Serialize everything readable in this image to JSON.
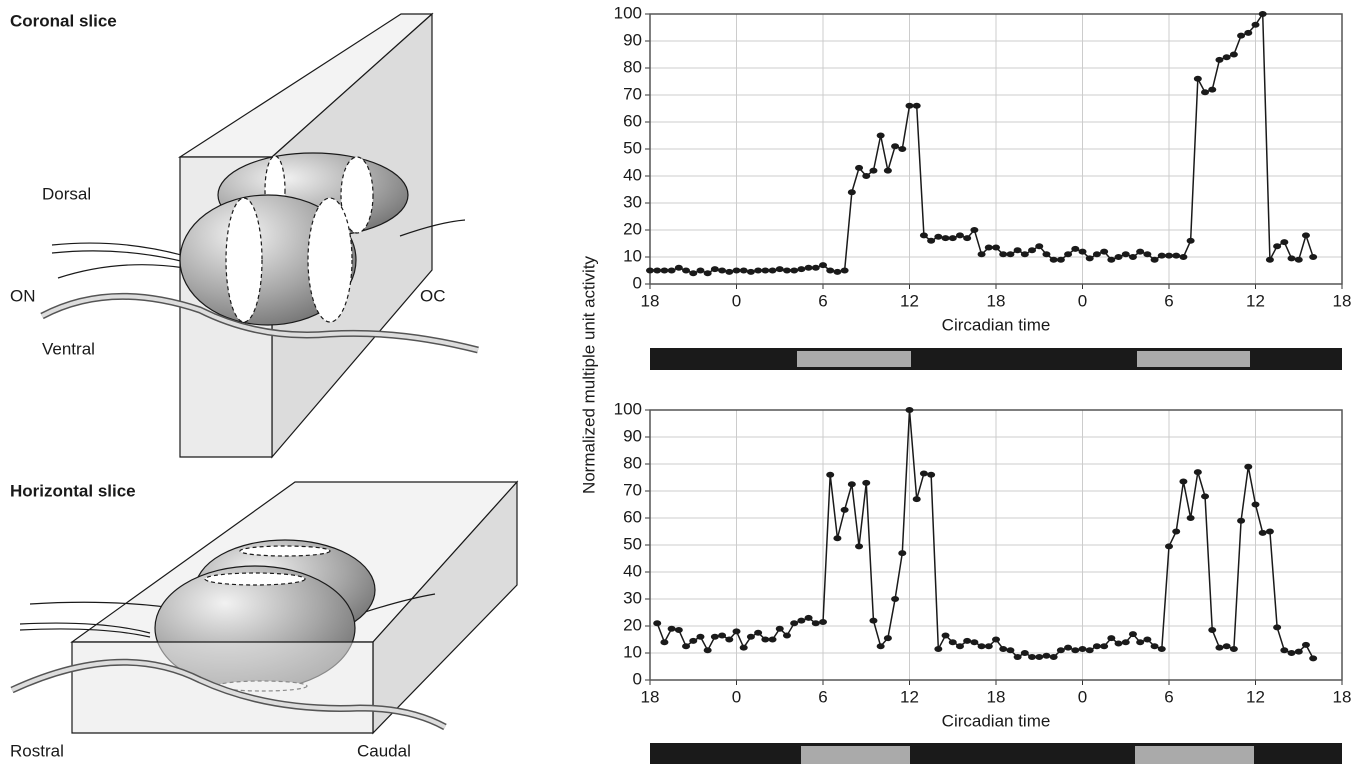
{
  "diagram": {
    "coronal": {
      "title": "Coronal slice",
      "dorsal": "Dorsal",
      "on": "ON",
      "oc": "OC",
      "ventral": "Ventral"
    },
    "horizontal": {
      "title": "Horizontal slice",
      "rostral": "Rostral",
      "caudal": "Caudal"
    }
  },
  "chart_data": [
    {
      "type": "line",
      "ylabel": "Normalized multiple unit activity",
      "xlabel": "Circadian time",
      "xlim": [
        0,
        48
      ],
      "xticks": [
        {
          "value": 0,
          "label": "18"
        },
        {
          "value": 6,
          "label": "0"
        },
        {
          "value": 12,
          "label": "6"
        },
        {
          "value": 18,
          "label": "12"
        },
        {
          "value": 24,
          "label": "18"
        },
        {
          "value": 30,
          "label": "0"
        },
        {
          "value": 36,
          "label": "6"
        },
        {
          "value": 42,
          "label": "12"
        },
        {
          "value": 48,
          "label": "18"
        }
      ],
      "ylim": [
        0,
        100
      ],
      "yticks": [
        0,
        10,
        20,
        30,
        40,
        50,
        60,
        70,
        80,
        90,
        100
      ],
      "grid": true,
      "color": "#1a1a1a",
      "x": [
        0,
        0.5,
        1,
        1.5,
        2,
        2.5,
        3,
        3.5,
        4,
        4.5,
        5,
        5.5,
        6,
        6.5,
        7,
        7.5,
        8,
        8.5,
        9,
        9.5,
        10,
        10.5,
        11,
        11.5,
        12,
        12.5,
        13,
        13.5,
        14,
        14.5,
        15,
        15.5,
        16,
        16.5,
        17,
        17.5,
        18,
        18.5,
        19,
        19.5,
        20,
        20.5,
        21,
        21.5,
        22,
        22.5,
        23,
        23.5,
        24,
        24.5,
        25,
        25.5,
        26,
        26.5,
        27,
        27.5,
        28,
        28.5,
        29,
        29.5,
        30,
        30.5,
        31,
        31.5,
        32,
        32.5,
        33,
        33.5,
        34,
        34.5,
        35,
        35.5,
        36,
        36.5,
        37,
        37.5,
        38,
        38.5,
        39,
        39.5,
        40,
        40.5,
        41,
        41.5,
        42,
        42.5,
        43,
        43.5,
        44,
        44.5,
        45,
        45.5,
        46
      ],
      "values": [
        5,
        5,
        5,
        5,
        6,
        5,
        4,
        5,
        4,
        5.5,
        5,
        4.5,
        5,
        5,
        4.5,
        5,
        5,
        5,
        5.5,
        5,
        5,
        5.5,
        6,
        6,
        7,
        5,
        4.5,
        5,
        34,
        43,
        40,
        42,
        55,
        42,
        51,
        50,
        66,
        66,
        18,
        16,
        17.5,
        17,
        17,
        18,
        17,
        20,
        11,
        13.5,
        13.5,
        11,
        11,
        12.5,
        11,
        12.5,
        14,
        11,
        9,
        9,
        11,
        13,
        12,
        9.5,
        11,
        12,
        9,
        10,
        11,
        10,
        12,
        11,
        9,
        10.5,
        10.5,
        10.5,
        10,
        16,
        76,
        71,
        72,
        83,
        84,
        85,
        92,
        93,
        96,
        100,
        9,
        14,
        15.5,
        9.5,
        9,
        18,
        10
      ]
    },
    {
      "type": "line",
      "xlabel": "Circadian time",
      "xlim": [
        0,
        48
      ],
      "xticks": [
        {
          "value": 0,
          "label": "18"
        },
        {
          "value": 6,
          "label": "0"
        },
        {
          "value": 12,
          "label": "6"
        },
        {
          "value": 18,
          "label": "12"
        },
        {
          "value": 24,
          "label": "18"
        },
        {
          "value": 30,
          "label": "0"
        },
        {
          "value": 36,
          "label": "6"
        },
        {
          "value": 42,
          "label": "12"
        },
        {
          "value": 48,
          "label": "18"
        }
      ],
      "ylim": [
        0,
        100
      ],
      "yticks": [
        0,
        10,
        20,
        30,
        40,
        50,
        60,
        70,
        80,
        90,
        100
      ],
      "grid": true,
      "color": "#1a1a1a",
      "x": [
        0.5,
        1,
        1.5,
        2,
        2.5,
        3,
        3.5,
        4,
        4.5,
        5,
        5.5,
        6,
        6.5,
        7,
        7.5,
        8,
        8.5,
        9,
        9.5,
        10,
        10.5,
        11,
        11.5,
        12,
        12.5,
        13,
        13.5,
        14,
        14.5,
        15,
        15.5,
        16,
        16.5,
        17,
        17.5,
        18,
        18.5,
        19,
        19.5,
        20,
        20.5,
        21,
        21.5,
        22,
        22.5,
        23,
        23.5,
        24,
        24.5,
        25,
        25.5,
        26,
        26.5,
        27,
        27.5,
        28,
        28.5,
        29,
        29.5,
        30,
        30.5,
        31,
        31.5,
        32,
        32.5,
        33,
        33.5,
        34,
        34.5,
        35,
        35.5,
        36,
        36.5,
        37,
        37.5,
        38,
        38.5,
        39,
        39.5,
        40,
        40.5,
        41,
        41.5,
        42,
        42.5,
        43,
        43.5,
        44,
        44.5,
        45,
        45.5,
        46
      ],
      "values": [
        21,
        14,
        19,
        18.5,
        12.5,
        14.5,
        16,
        11,
        16,
        16.5,
        15,
        18,
        12,
        16,
        17.5,
        15,
        15,
        19,
        16.5,
        21,
        22,
        23,
        21,
        21.5,
        76,
        52.5,
        63,
        72.5,
        49.5,
        73,
        22,
        12.5,
        15.5,
        30,
        47,
        100,
        67,
        76.5,
        76,
        11.5,
        16.5,
        14,
        12.5,
        14.5,
        14,
        12.5,
        12.5,
        15,
        11.5,
        11,
        8.5,
        10,
        8.5,
        8.5,
        9,
        8.5,
        11,
        12,
        11,
        11.5,
        11,
        12.5,
        12.5,
        15.5,
        13.5,
        14,
        17,
        14,
        15,
        12.5,
        11.5,
        49.5,
        55,
        73.5,
        60,
        77,
        68,
        18.5,
        12,
        12.5,
        11.5,
        59,
        79,
        65,
        54.5,
        55,
        19.5,
        11,
        10,
        10.5,
        13,
        8
      ]
    }
  ]
}
